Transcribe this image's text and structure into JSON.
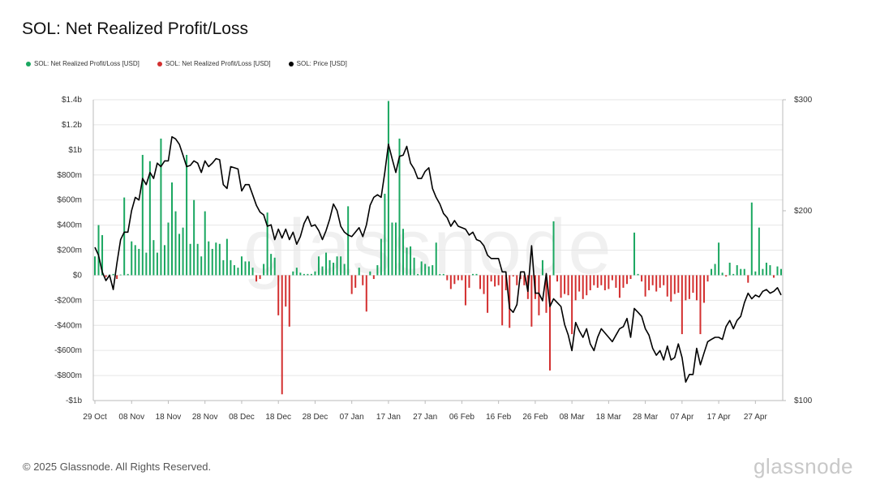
{
  "title": "SOL: Net Realized Profit/Loss",
  "legend": [
    {
      "label": "SOL: Net Realized Profit/Loss [USD]",
      "color": "#1aa760"
    },
    {
      "label": "SOL: Net Realized Profit/Loss [USD]",
      "color": "#d32f2f"
    },
    {
      "label": "SOL: Price [USD]",
      "color": "#000000"
    }
  ],
  "watermark": "glassnode",
  "footer": "© 2025 Glassnode. All Rights Reserved.",
  "brand": "glassnode",
  "chart_data": {
    "type": "bar",
    "colors": {
      "positive": "#1aa760",
      "negative": "#d32f2f",
      "price": "#000000",
      "grid": "#e6e6e6",
      "axis": "#bbbbbb"
    },
    "grid": true,
    "legend_position": "top-left",
    "x_ticks": [
      "29 Oct",
      "08 Nov",
      "18 Nov",
      "28 Nov",
      "08 Dec",
      "18 Dec",
      "28 Dec",
      "07 Jan",
      "17 Jan",
      "27 Jan",
      "06 Feb",
      "16 Feb",
      "26 Feb",
      "08 Mar",
      "18 Mar",
      "28 Mar",
      "07 Apr",
      "17 Apr",
      "27 Apr"
    ],
    "y_left": {
      "ticks": [
        "$1.4b",
        "$1.2b",
        "$1b",
        "$800m",
        "$600m",
        "$400m",
        "$200m",
        "$0",
        "-$200m",
        "-$400m",
        "-$600m",
        "-$800m",
        "-$1b"
      ],
      "range_musd": [
        -1000,
        1400
      ]
    },
    "y_right": {
      "ticks": [
        "$300",
        "$200",
        "$100"
      ],
      "range_usd": [
        100,
        300
      ],
      "scale": "log"
    },
    "start_date": "29 Oct",
    "series": [
      {
        "name": "SOL: Net Realized Profit/Loss [USD]",
        "unit": "million USD",
        "values": [
          150,
          400,
          320,
          -15,
          5,
          10,
          -30,
          5,
          620,
          10,
          270,
          240,
          210,
          960,
          180,
          910,
          280,
          180,
          1090,
          240,
          420,
          740,
          510,
          330,
          380,
          960,
          250,
          600,
          250,
          150,
          510,
          270,
          210,
          260,
          250,
          120,
          290,
          120,
          80,
          60,
          150,
          110,
          110,
          60,
          -50,
          -30,
          90,
          500,
          170,
          140,
          -320,
          -950,
          -250,
          -410,
          30,
          60,
          20,
          10,
          10,
          10,
          30,
          150,
          70,
          180,
          120,
          100,
          150,
          150,
          90,
          550,
          -150,
          -100,
          60,
          -80,
          -290,
          30,
          -30,
          80,
          290,
          650,
          1390,
          420,
          420,
          1090,
          370,
          220,
          230,
          140,
          10,
          110,
          90,
          70,
          80,
          260,
          10,
          10,
          -40,
          -110,
          -70,
          -40,
          -40,
          -240,
          -100,
          10,
          10,
          -110,
          -150,
          -300,
          -50,
          -90,
          -80,
          -400,
          -120,
          -420,
          -10,
          -80,
          -30,
          -80,
          -190,
          -410,
          -190,
          -320,
          120,
          -300,
          -760,
          430,
          -50,
          -180,
          -150,
          -160,
          -470,
          -200,
          -130,
          -190,
          -160,
          -120,
          -80,
          -100,
          -80,
          -120,
          -110,
          -40,
          -100,
          -180,
          -100,
          -70,
          -30,
          340,
          10,
          -50,
          -170,
          -120,
          -80,
          -130,
          -100,
          -80,
          -170,
          -210,
          -150,
          -140,
          -470,
          -200,
          -190,
          -140,
          -200,
          -470,
          -220,
          -50,
          50,
          90,
          260,
          20,
          -10,
          100,
          10,
          80,
          50,
          50,
          -60,
          580,
          30,
          380,
          50,
          100,
          80,
          -20,
          70,
          50
        ]
      },
      {
        "name": "SOL: Price [USD]",
        "unit": "USD",
        "values": [
          175,
          170,
          160,
          155,
          158,
          150,
          165,
          180,
          185,
          185,
          200,
          210,
          208,
          225,
          220,
          230,
          225,
          238,
          235,
          240,
          240,
          262,
          260,
          255,
          245,
          235,
          236,
          240,
          238,
          230,
          240,
          235,
          238,
          242,
          241,
          220,
          217,
          235,
          234,
          233,
          215,
          220,
          220,
          212,
          204,
          199,
          197,
          189,
          190,
          180,
          187,
          181,
          187,
          180,
          185,
          177,
          182,
          191,
          196,
          189,
          190,
          186,
          180,
          186,
          194,
          205,
          200,
          189,
          185,
          183,
          182,
          185,
          188,
          182,
          190,
          204,
          210,
          212,
          210,
          230,
          255,
          242,
          230,
          244,
          245,
          253,
          238,
          233,
          225,
          225,
          231,
          234,
          217,
          210,
          205,
          198,
          195,
          189,
          193,
          189,
          188,
          187,
          183,
          185,
          180,
          179,
          176,
          170,
          168,
          168,
          168,
          160,
          160,
          140,
          138,
          142,
          160,
          160,
          149,
          176,
          148,
          148,
          144,
          159,
          141,
          145,
          143,
          141,
          132,
          127,
          120,
          133,
          129,
          126,
          130,
          123,
          120,
          126,
          130,
          128,
          126,
          124,
          127,
          130,
          131,
          135,
          126,
          140,
          138,
          136,
          130,
          127,
          121,
          118,
          120,
          116,
          122,
          116,
          117,
          123,
          117,
          107,
          110,
          110,
          121,
          114,
          119,
          124,
          125,
          126,
          126,
          125,
          131,
          134,
          130,
          134,
          136,
          143,
          148,
          145,
          147,
          146,
          149,
          150,
          148,
          149,
          151,
          147
        ]
      }
    ]
  }
}
